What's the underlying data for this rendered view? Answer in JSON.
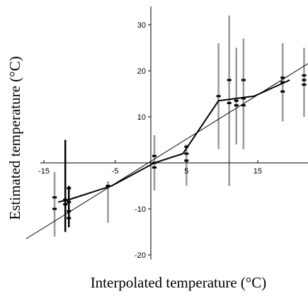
{
  "chart_data": {
    "type": "scatter",
    "xlabel": "Interpolated temperature (°C)",
    "ylabel": "Estimated temperature (°C)",
    "xlim": [
      -15.5,
      24
    ],
    "ylim": [
      -21,
      34
    ],
    "x_ticks": [
      -15,
      -5,
      5,
      15
    ],
    "y_ticks": [
      -20,
      -10,
      0,
      10,
      20,
      30
    ],
    "grid": false,
    "legend": "none",
    "colors": {
      "axis": "#000000",
      "error_bar": "#999999",
      "error_bar_dark": "#000000",
      "line": "#000000"
    },
    "one_to_one_line": {
      "x": [
        -17.5,
        22.5
      ],
      "y": [
        -16.5,
        22
      ]
    },
    "regression_line": {
      "x": [
        -13,
        -11.5,
        -5.5,
        0.5,
        4.5,
        9.5,
        14.5,
        19.5
      ],
      "y": [
        -8.5,
        -8,
        -5,
        0,
        2,
        13.5,
        14.5,
        18
      ]
    },
    "error_bars": [
      {
        "x": -13.5,
        "low": -16,
        "high": -2,
        "dark": false
      },
      {
        "x": -12,
        "low": -15,
        "high": 5,
        "dark": true
      },
      {
        "x": -11.5,
        "low": -14,
        "high": -5,
        "dark": true
      },
      {
        "x": -6,
        "low": -13,
        "high": -4,
        "dark": false
      },
      {
        "x": 0.5,
        "low": -6,
        "high": 6,
        "dark": false
      },
      {
        "x": 5,
        "low": -5,
        "high": 4,
        "dark": false
      },
      {
        "x": 9.5,
        "low": 3,
        "high": 26,
        "dark": false
      },
      {
        "x": 11,
        "low": -5,
        "high": 32,
        "dark": false
      },
      {
        "x": 12,
        "low": 4,
        "high": 25,
        "dark": false
      },
      {
        "x": 13,
        "low": 3,
        "high": 27,
        "dark": false
      },
      {
        "x": 18.5,
        "low": 9,
        "high": 26,
        "dark": false
      },
      {
        "x": 21.5,
        "low": 10,
        "high": 25,
        "dark": false
      }
    ],
    "points": [
      {
        "x": -13.5,
        "y": -7.5
      },
      {
        "x": -13.5,
        "y": -10
      },
      {
        "x": -12,
        "y": -8
      },
      {
        "x": -12,
        "y": -9
      },
      {
        "x": -11.5,
        "y": -5.5
      },
      {
        "x": -11.5,
        "y": -8.5
      },
      {
        "x": -11.5,
        "y": -10.5
      },
      {
        "x": -11.5,
        "y": -12
      },
      {
        "x": -6,
        "y": -5
      },
      {
        "x": 0.5,
        "y": 1.5
      },
      {
        "x": 0.5,
        "y": -1
      },
      {
        "x": 0.5,
        "y": 0
      },
      {
        "x": 5,
        "y": 3.5
      },
      {
        "x": 5,
        "y": 2
      },
      {
        "x": 5,
        "y": 0.5
      },
      {
        "x": 9.5,
        "y": 14.5
      },
      {
        "x": 11,
        "y": 18
      },
      {
        "x": 11,
        "y": 13
      },
      {
        "x": 12,
        "y": 13.5
      },
      {
        "x": 12,
        "y": 12.5
      },
      {
        "x": 13,
        "y": 18
      },
      {
        "x": 13,
        "y": 14
      },
      {
        "x": 13,
        "y": 12.5
      },
      {
        "x": 18.5,
        "y": 18.5
      },
      {
        "x": 18.5,
        "y": 17.5
      },
      {
        "x": 18.5,
        "y": 15.5
      },
      {
        "x": 21.5,
        "y": 19
      },
      {
        "x": 21.5,
        "y": 18
      },
      {
        "x": 21.5,
        "y": 17
      }
    ]
  }
}
